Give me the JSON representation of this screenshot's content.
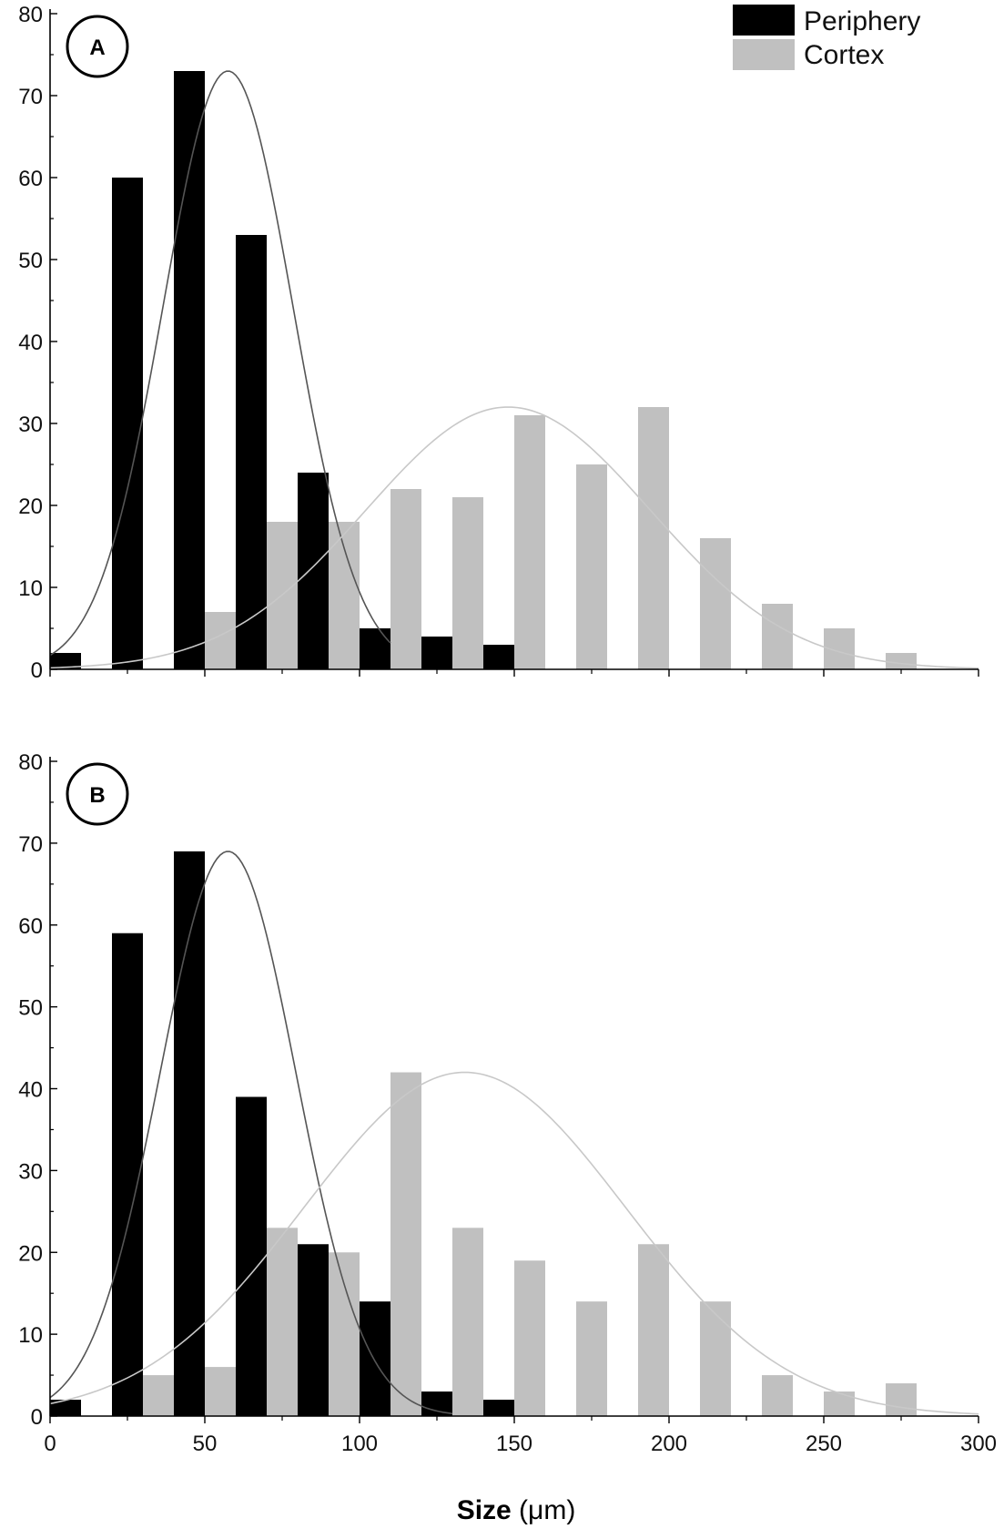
{
  "figure": {
    "xlabel_bold": "Size",
    "xlabel_unit": " (μm)",
    "legend": [
      {
        "label": "Periphery",
        "color": "#000000"
      },
      {
        "label": "Cortex",
        "color": "#c0c0c0"
      }
    ]
  },
  "chart_data": [
    {
      "type": "bar",
      "panel_label": "A",
      "xlim": [
        0,
        300
      ],
      "ylim": [
        0,
        80
      ],
      "x_ticks": [
        0,
        50,
        100,
        150,
        200,
        250,
        300
      ],
      "y_ticks": [
        0,
        10,
        20,
        30,
        40,
        50,
        60,
        70,
        80
      ],
      "legend_position": "top-right",
      "grid": false,
      "series": [
        {
          "name": "Periphery",
          "color": "#000000",
          "bar_width": 10,
          "x": [
            5,
            25,
            45,
            65,
            85,
            105,
            125,
            145
          ],
          "values": [
            2,
            60,
            73,
            53,
            24,
            5,
            4,
            3
          ],
          "fit": {
            "type": "gaussian",
            "mean": 57.5,
            "peak": 73,
            "sigma": 21,
            "stroke": "#555555",
            "x_range": [
              0,
              110
            ]
          }
        },
        {
          "name": "Cortex",
          "color": "#c0c0c0",
          "bar_width": 10,
          "x": [
            55,
            75,
            95,
            115,
            135,
            155,
            175,
            195,
            215,
            235,
            255,
            275
          ],
          "values": [
            7,
            18,
            18,
            22,
            21,
            31,
            25,
            32,
            16,
            8,
            5,
            2
          ],
          "fit": {
            "type": "gaussian",
            "mean": 148,
            "peak": 32,
            "sigma": 46,
            "stroke": "#c8c8c8",
            "x_range": [
              0,
              300
            ]
          }
        }
      ]
    },
    {
      "type": "bar",
      "panel_label": "B",
      "xlim": [
        0,
        300
      ],
      "ylim": [
        0,
        80
      ],
      "x_ticks": [
        0,
        50,
        100,
        150,
        200,
        250,
        300
      ],
      "y_ticks": [
        0,
        10,
        20,
        30,
        40,
        50,
        60,
        70,
        80
      ],
      "grid": false,
      "series": [
        {
          "name": "Periphery",
          "color": "#000000",
          "bar_width": 10,
          "x": [
            5,
            25,
            45,
            65,
            85,
            105,
            125,
            145
          ],
          "values": [
            2,
            59,
            69,
            39,
            21,
            14,
            3,
            2
          ],
          "fit": {
            "type": "gaussian",
            "mean": 57.5,
            "peak": 69,
            "sigma": 22,
            "stroke": "#555555",
            "x_range": [
              0,
              130
            ]
          }
        },
        {
          "name": "Cortex",
          "color": "#c0c0c0",
          "bar_width": 10,
          "x": [
            35,
            55,
            75,
            95,
            115,
            135,
            155,
            175,
            195,
            215,
            235,
            255,
            275
          ],
          "values": [
            5,
            6,
            23,
            20,
            42,
            23,
            19,
            14,
            21,
            14,
            5,
            3,
            4
          ],
          "fit": {
            "type": "gaussian",
            "mean": 134,
            "peak": 42,
            "sigma": 52,
            "stroke": "#c8c8c8",
            "x_range": [
              0,
              300
            ]
          }
        }
      ]
    }
  ]
}
